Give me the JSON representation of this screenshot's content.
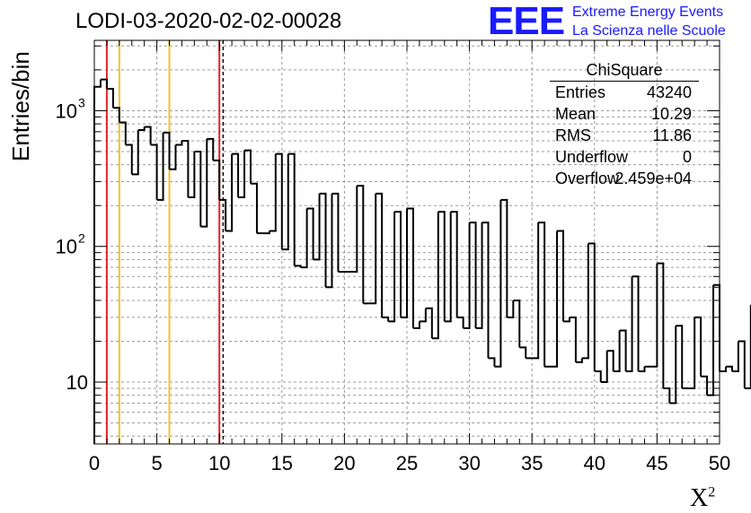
{
  "header": {
    "title": "LODI-03-2020-02-02-00028",
    "logo_text": "EEE",
    "logo_line1": "Extreme Energy Events",
    "logo_line2": "La Scienza nelle Scuole"
  },
  "stats_box": {
    "title": "ChiSquare",
    "rows": [
      {
        "label": "Entries",
        "value": "43240"
      },
      {
        "label": "Mean",
        "value": "10.29"
      },
      {
        "label": "RMS",
        "value": "11.86"
      },
      {
        "label": "Underflow",
        "value": "0"
      },
      {
        "label": "Overflow",
        "value": "2.459e+04"
      }
    ]
  },
  "chart_data": {
    "type": "histogram",
    "title": "LODI-03-2020-02-02-00028",
    "xlabel": "X",
    "xlabel_superscript": "2",
    "ylabel": "Entries/bin",
    "xlim": [
      0,
      50
    ],
    "ylim": [
      3.5,
      3300
    ],
    "yscale": "log",
    "grid": true,
    "bin_width": 0.5,
    "x_ticks": [
      "0",
      "5",
      "10",
      "15",
      "20",
      "25",
      "30",
      "35",
      "40",
      "45",
      "50"
    ],
    "y_ticks": [
      {
        "value": 10,
        "label": "10"
      },
      {
        "value": 100,
        "label": "10",
        "exp": "2"
      },
      {
        "value": 1000,
        "label": "10",
        "exp": "3"
      }
    ],
    "values": [
      1500,
      1700,
      1450,
      1050,
      820,
      560,
      340,
      720,
      760,
      560,
      220,
      690,
      370,
      560,
      600,
      230,
      500,
      140,
      620,
      430,
      220,
      130,
      480,
      230,
      510,
      290,
      125,
      125,
      130,
      480,
      95,
      480,
      72,
      70,
      190,
      80,
      245,
      50,
      245,
      65,
      65,
      65,
      280,
      38,
      38,
      245,
      30,
      28,
      180,
      30,
      190,
      25,
      28,
      35,
      21,
      180,
      28,
      180,
      30,
      25,
      150,
      25,
      150,
      15,
      13,
      220,
      30,
      40,
      18,
      15,
      15,
      150,
      13,
      13,
      130,
      28,
      30,
      14,
      15,
      105,
      12,
      10,
      17,
      12,
      24,
      12,
      60,
      12,
      13,
      13,
      75,
      9,
      7,
      26,
      9,
      9,
      30,
      11,
      8,
      52,
      12,
      13,
      12,
      20,
      9,
      37,
      10,
      8,
      9,
      25,
      15,
      28,
      48,
      9,
      42,
      16,
      13,
      30,
      8,
      27,
      5,
      24,
      10,
      16,
      5,
      20,
      12,
      8,
      18,
      6,
      12,
      30,
      11,
      14,
      6,
      13,
      17,
      14,
      9,
      5,
      4,
      11,
      15,
      9,
      9,
      10,
      14,
      10,
      13,
      18,
      10
    ]
  },
  "reference_lines": [
    {
      "x": 1,
      "color": "#e3262a",
      "style": "solid"
    },
    {
      "x": 2,
      "color": "#f2c12e",
      "style": "solid"
    },
    {
      "x": 6,
      "color": "#f2c12e",
      "style": "solid"
    },
    {
      "x": 10,
      "color": "#e3262a",
      "style": "solid"
    },
    {
      "x": 10.3,
      "color": "#000000",
      "style": "dashed"
    }
  ]
}
